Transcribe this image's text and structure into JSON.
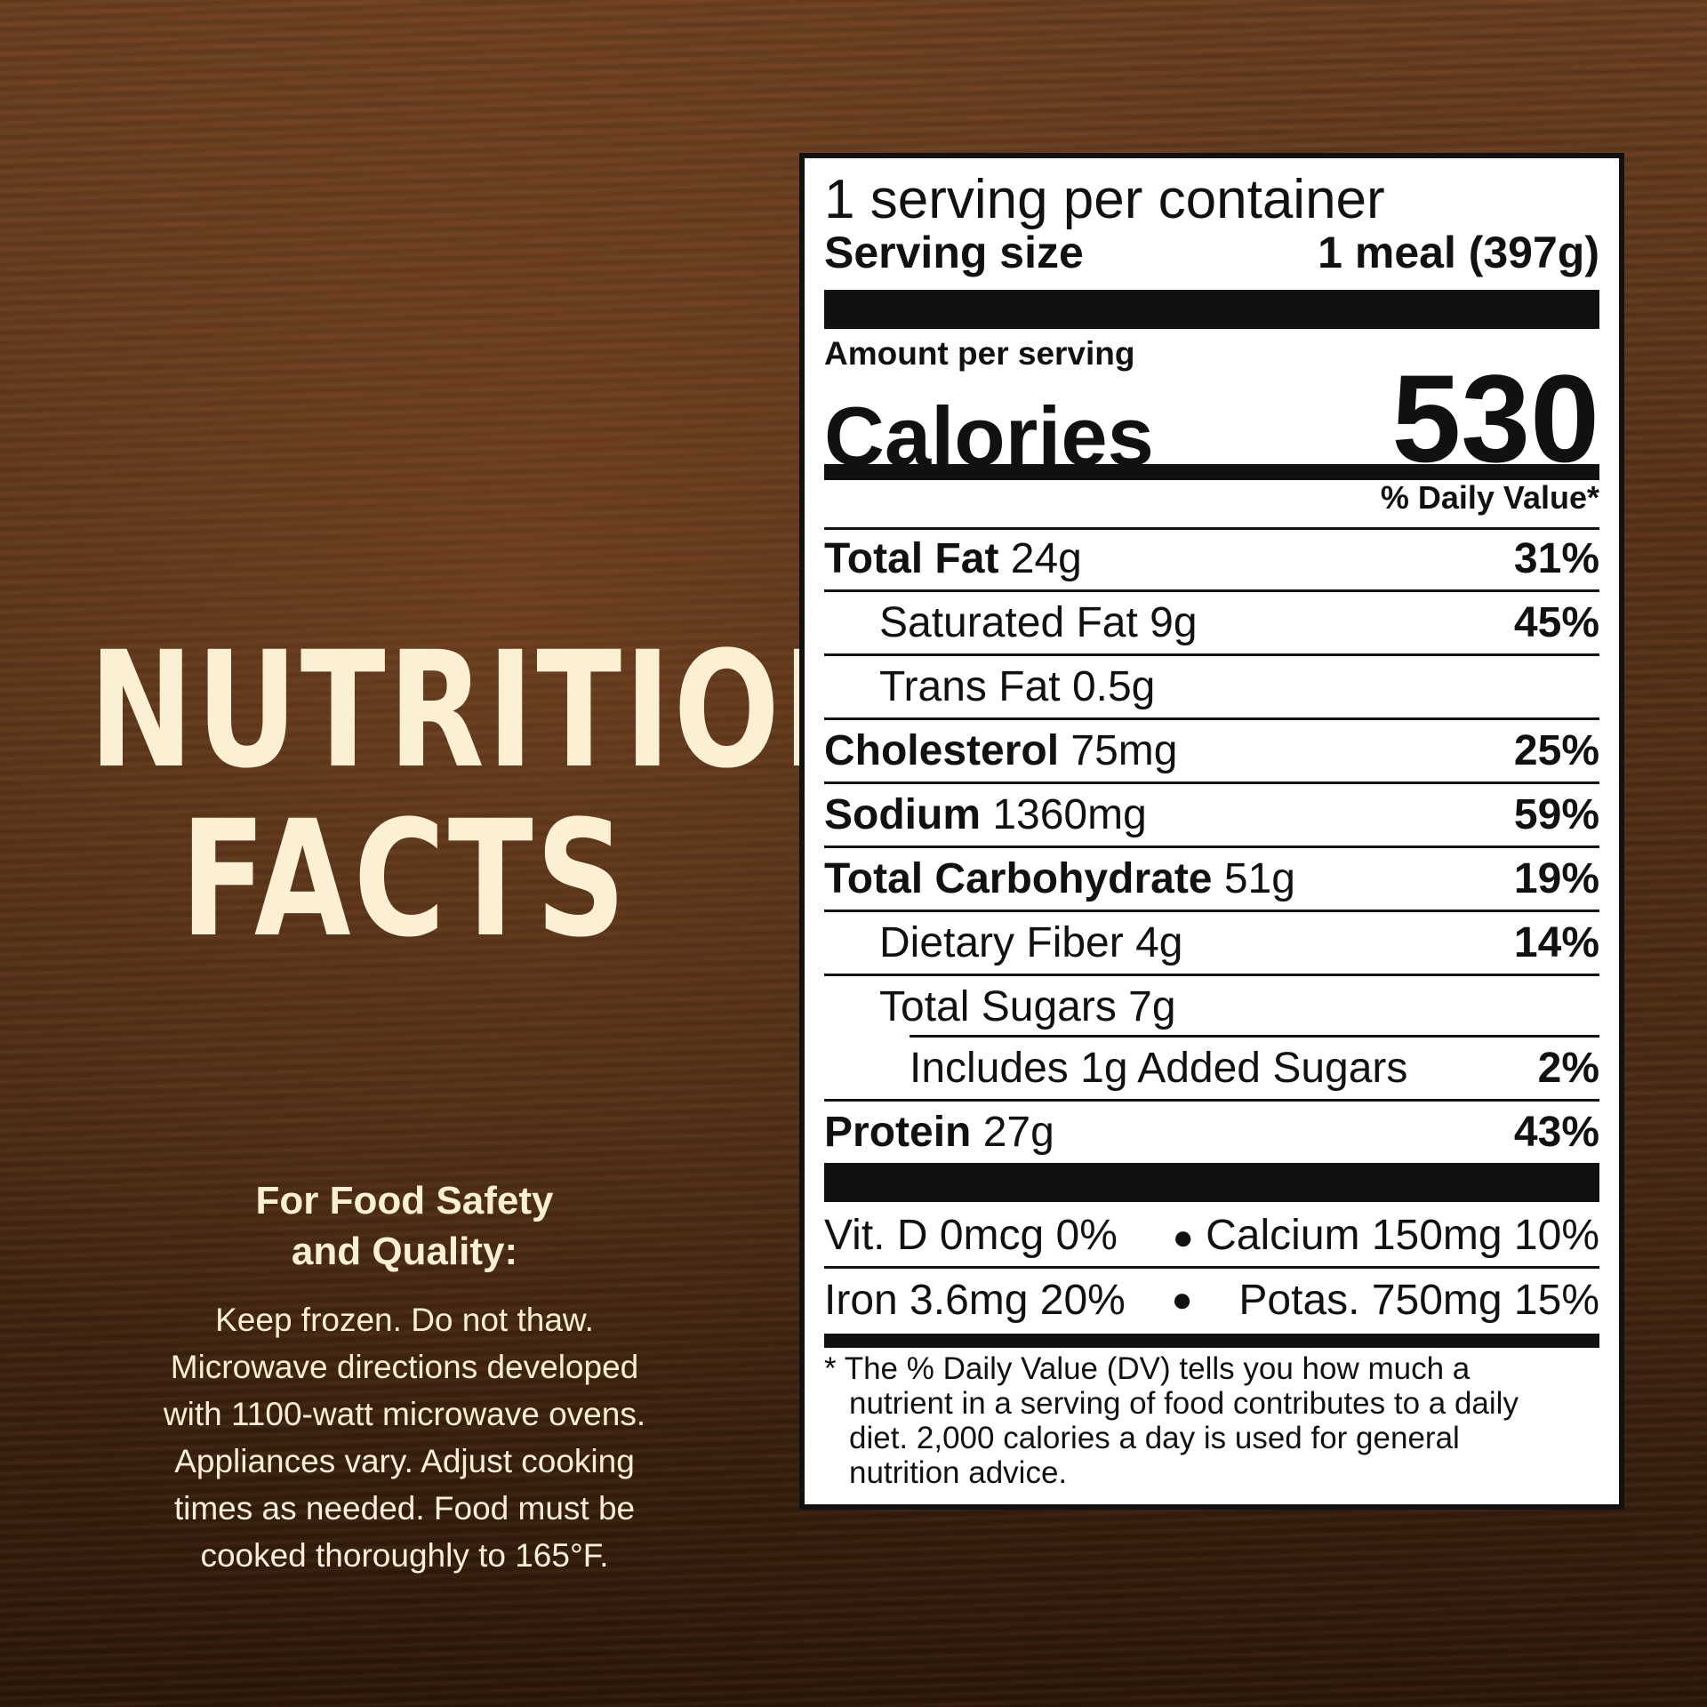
{
  "heading": {
    "line1": "NUTRITION",
    "line2": "FACTS"
  },
  "safety": {
    "title_line1": "For Food Safety",
    "title_line2": "and Quality:",
    "body": [
      "Keep frozen. Do not thaw.",
      "Microwave directions developed",
      "with 1100-watt microwave ovens.",
      "Appliances vary. Adjust cooking",
      "times as needed. Food must be",
      "cooked thoroughly to 165°F."
    ]
  },
  "label": {
    "servings": "1 serving per container",
    "serving_size_label": "Serving size",
    "serving_size_value": "1 meal (397g)",
    "amount_per_serving": "Amount per serving",
    "calories_label": "Calories",
    "calories_value": "530",
    "dv_header": "% Daily Value*",
    "rows": [
      {
        "name": "Total Fat",
        "amount": " 24g",
        "pct": "31%"
      },
      {
        "name": "",
        "amount": "Saturated Fat 9g",
        "pct": "45%"
      },
      {
        "name": "",
        "amount": "Trans Fat 0.5g",
        "pct": ""
      },
      {
        "name": "Cholesterol",
        "amount": " 75mg",
        "pct": "25%"
      },
      {
        "name": "Sodium",
        "amount": " 1360mg",
        "pct": "59%"
      },
      {
        "name": "Total Carbohydrate",
        "amount": " 51g",
        "pct": "19%"
      },
      {
        "name": "",
        "amount": "Dietary Fiber 4g",
        "pct": "14%"
      },
      {
        "name": "",
        "amount": "Total Sugars 7g",
        "pct": ""
      },
      {
        "name": "",
        "amount": "Includes 1g Added Sugars",
        "pct": "2%"
      },
      {
        "name": "Protein",
        "amount": " 27g",
        "pct": "43%"
      }
    ],
    "minerals": {
      "vitd": "Vit. D 0mcg 0%",
      "calcium": "Calcium 150mg 10%",
      "iron": "Iron 3.6mg 20%",
      "potassium": "Potas. 750mg 15%",
      "bullet": "●"
    },
    "footnote": [
      "* The % Daily Value (DV) tells you how much a",
      "nutrient in a serving of food contributes to a daily",
      "diet. 2,000 calories a day is used for general",
      "nutrition advice."
    ]
  }
}
